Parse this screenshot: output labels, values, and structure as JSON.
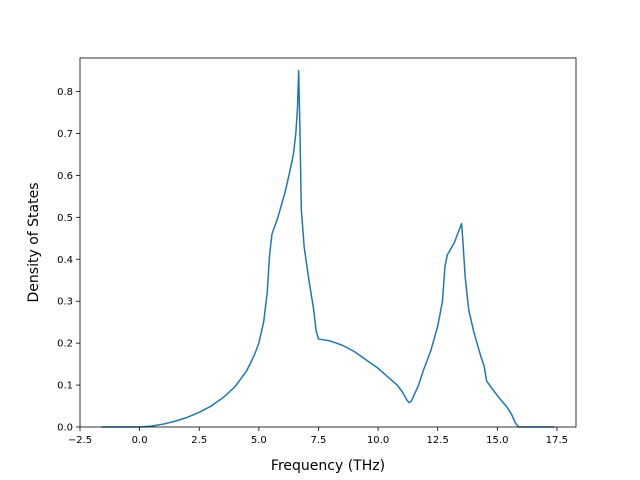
{
  "chart_data": {
    "type": "line",
    "title": "",
    "xlabel": "Frequency (THz)",
    "ylabel": "Density of States",
    "xlim": [
      -2.5,
      18.3
    ],
    "ylim": [
      0,
      0.88
    ],
    "xticks": [
      -2.5,
      0.0,
      2.5,
      5.0,
      7.5,
      10.0,
      12.5,
      15.0,
      17.5
    ],
    "xtick_labels": [
      "−2.5",
      "0.0",
      "2.5",
      "5.0",
      "7.5",
      "10.0",
      "12.5",
      "15.0",
      "17.5"
    ],
    "yticks": [
      0.0,
      0.1,
      0.2,
      0.3,
      0.4,
      0.5,
      0.6,
      0.7,
      0.8
    ],
    "ytick_labels": [
      "0.0",
      "0.1",
      "0.2",
      "0.3",
      "0.4",
      "0.5",
      "0.6",
      "0.7",
      "0.8"
    ],
    "grid": false,
    "line_color": "#1f77b4",
    "series": [
      {
        "x": [
          -1.6,
          -1.0,
          0.0,
          0.5,
          1.0,
          1.5,
          2.0,
          2.5,
          3.0,
          3.5,
          4.0,
          4.5,
          4.8,
          5.0,
          5.2,
          5.35,
          5.45,
          5.55,
          5.8,
          6.1,
          6.3,
          6.45,
          6.55,
          6.62,
          6.67,
          6.72,
          6.78,
          6.9,
          7.1,
          7.3,
          7.4,
          7.5,
          8.0,
          8.5,
          9.0,
          9.5,
          10.0,
          10.5,
          10.8,
          11.0,
          11.1,
          11.2,
          11.3,
          11.4,
          11.5,
          11.7,
          11.9,
          12.2,
          12.5,
          12.7,
          12.8,
          12.9,
          13.0,
          13.2,
          13.4,
          13.5,
          13.55,
          13.65,
          13.8,
          14.0,
          14.3,
          14.45,
          14.55,
          14.8,
          15.1,
          15.4,
          15.6,
          15.75,
          15.9,
          16.5,
          17.0,
          17.4
        ],
        "y": [
          0.0,
          0.0,
          0.0,
          0.002,
          0.007,
          0.014,
          0.023,
          0.035,
          0.05,
          0.07,
          0.096,
          0.135,
          0.17,
          0.2,
          0.25,
          0.32,
          0.41,
          0.46,
          0.5,
          0.56,
          0.61,
          0.65,
          0.7,
          0.76,
          0.85,
          0.72,
          0.52,
          0.43,
          0.35,
          0.28,
          0.23,
          0.21,
          0.205,
          0.195,
          0.18,
          0.16,
          0.14,
          0.115,
          0.1,
          0.085,
          0.075,
          0.065,
          0.058,
          0.062,
          0.075,
          0.1,
          0.135,
          0.18,
          0.24,
          0.3,
          0.38,
          0.41,
          0.42,
          0.44,
          0.47,
          0.485,
          0.45,
          0.36,
          0.28,
          0.23,
          0.17,
          0.145,
          0.11,
          0.09,
          0.068,
          0.048,
          0.03,
          0.01,
          0.0,
          0.0,
          0.0,
          0.0
        ]
      }
    ]
  }
}
